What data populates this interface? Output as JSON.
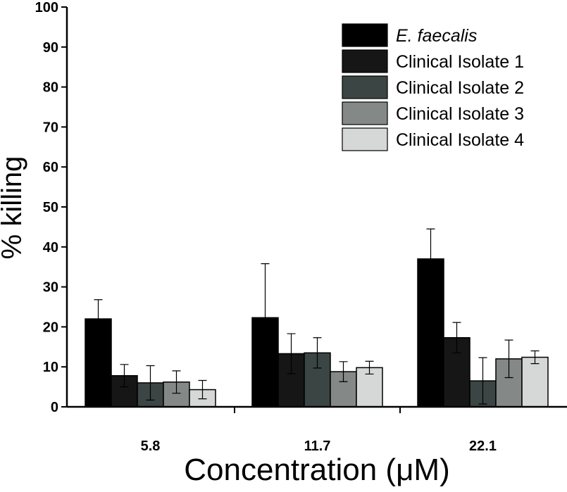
{
  "chart_data": {
    "type": "bar",
    "title": "",
    "xlabel": "Concentration (μM)",
    "ylabel": "% killing",
    "ylim": [
      0,
      100
    ],
    "yticks": [
      "0",
      "10",
      "20",
      "30",
      "40",
      "50",
      "60",
      "70",
      "80",
      "90",
      "100"
    ],
    "categories": [
      "5.8",
      "11.7",
      "22.1"
    ],
    "legend_position": "top-right",
    "grid": false,
    "series": [
      {
        "name": "E. faecalis",
        "italic": true,
        "color": "#000000",
        "values": [
          22,
          22.3,
          37
        ],
        "errors": [
          4.8,
          13.5,
          7.5
        ]
      },
      {
        "name": "Clinical Isolate 1",
        "italic": false,
        "color": "#161616",
        "values": [
          7.8,
          13.3,
          17.3
        ],
        "errors": [
          2.8,
          5.0,
          3.8
        ]
      },
      {
        "name": "Clinical Isolate 2",
        "italic": false,
        "color": "#3b4544",
        "values": [
          6.0,
          13.5,
          6.5
        ],
        "errors": [
          4.3,
          3.8,
          5.8
        ]
      },
      {
        "name": "Clinical Isolate 3",
        "italic": false,
        "color": "#848886",
        "values": [
          6.2,
          8.8,
          12.0
        ],
        "errors": [
          2.8,
          2.5,
          4.7
        ]
      },
      {
        "name": "Clinical Isolate 4",
        "italic": false,
        "color": "#d6d8d7",
        "values": [
          4.3,
          9.8,
          12.4
        ],
        "errors": [
          2.3,
          1.6,
          1.6
        ]
      }
    ]
  }
}
